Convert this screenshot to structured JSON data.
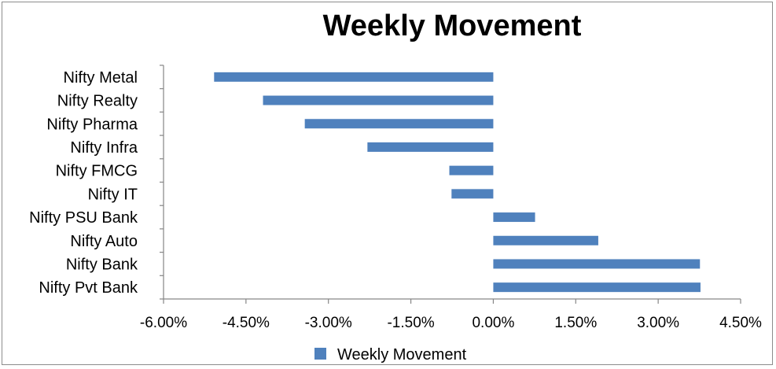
{
  "chart_data": {
    "type": "bar",
    "orientation": "horizontal",
    "title": "Weekly Movement",
    "categories": [
      "Nifty Metal",
      "Nifty Realty",
      "Nifty Pharma",
      "Nifty Infra",
      "Nifty FMCG",
      "Nifty IT",
      "Nifty PSU Bank",
      "Nifty Auto",
      "Nifty Bank",
      "Nifty Pvt Bank"
    ],
    "series": [
      {
        "name": "Weekly Movement",
        "values": [
          -5.08,
          -4.19,
          -3.43,
          -2.29,
          -0.8,
          -0.76,
          0.76,
          1.91,
          3.76,
          3.77
        ]
      }
    ],
    "xlim": [
      -6.0,
      4.5
    ],
    "xticks": [
      -6.0,
      -4.5,
      -3.0,
      -1.5,
      0.0,
      1.5,
      3.0,
      4.5
    ],
    "xtick_labels": [
      "-6.00%",
      "-4.50%",
      "-3.00%",
      "-1.50%",
      "0.00%",
      "1.50%",
      "3.00%",
      "4.50%"
    ],
    "bar_color": "#4f81bd",
    "grid": false,
    "legend_position": "bottom"
  }
}
